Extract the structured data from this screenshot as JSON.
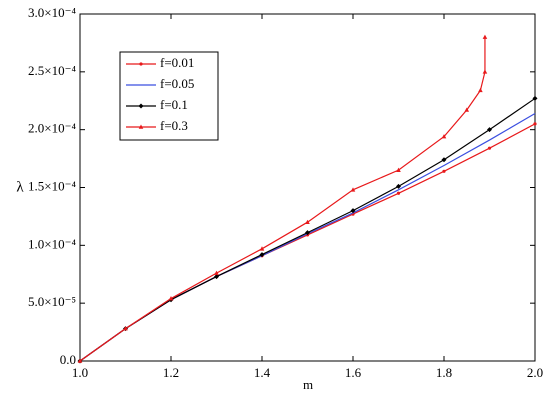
{
  "chart_data": {
    "type": "line",
    "x_label": "m",
    "y_label": "λ",
    "xlim": [
      1.0,
      2.0
    ],
    "xticks": [
      {
        "value": 1.0,
        "label": "1.0"
      },
      {
        "value": 1.2,
        "label": "1.2"
      },
      {
        "value": 1.4,
        "label": "1.4"
      },
      {
        "value": 1.6,
        "label": "1.6"
      },
      {
        "value": 1.8,
        "label": "1.8"
      },
      {
        "value": 2.0,
        "label": "2.0"
      }
    ],
    "ylim": [
      0,
      0.0003
    ],
    "yticks": [
      {
        "value": 0,
        "label": "0.0"
      },
      {
        "value": 5e-05,
        "label": "5.0×10⁻⁵"
      },
      {
        "value": 0.0001,
        "label": "1.0×10⁻⁴"
      },
      {
        "value": 0.00015,
        "label": "1.5×10⁻⁴"
      },
      {
        "value": 0.0002,
        "label": "2.0×10⁻⁴"
      },
      {
        "value": 0.00025,
        "label": "2.5×10⁻⁴"
      },
      {
        "value": 0.0003,
        "label": "3.0×10⁻⁴"
      }
    ],
    "grid": false,
    "legend": "upper left",
    "series": [
      {
        "name": "f=0.01",
        "color": "#e8191b",
        "marker": "circle",
        "x": [
          1.0,
          1.1,
          1.2,
          1.3,
          1.4,
          1.5,
          1.6,
          1.7,
          1.8,
          1.9,
          2.0
        ],
        "values": [
          0,
          2.8e-05,
          5.3e-05,
          7.3e-05,
          9.1e-05,
          0.000109,
          0.000127,
          0.000145,
          0.000164,
          0.000184,
          0.000205
        ]
      },
      {
        "name": "f=0.05",
        "color": "#3b4fe0",
        "marker": "none",
        "x": [
          1.0,
          1.1,
          1.2,
          1.3,
          1.4,
          1.5,
          1.6,
          1.7,
          1.8,
          1.9,
          2.0
        ],
        "values": [
          0,
          2.8e-05,
          5.3e-05,
          7.3e-05,
          9.1e-05,
          0.00011,
          0.000128,
          0.000148,
          0.000169,
          0.000191,
          0.000214
        ]
      },
      {
        "name": "f=0.1",
        "color": "#000000",
        "marker": "diamond",
        "x": [
          1.0,
          1.1,
          1.2,
          1.3,
          1.4,
          1.5,
          1.6,
          1.7,
          1.8,
          1.9,
          2.0
        ],
        "values": [
          0,
          2.8e-05,
          5.3e-05,
          7.3e-05,
          9.2e-05,
          0.000111,
          0.00013,
          0.000151,
          0.000174,
          0.0002,
          0.000227
        ]
      },
      {
        "name": "f=0.3",
        "color": "#e8191b",
        "marker": "triangle",
        "x": [
          1.0,
          1.1,
          1.2,
          1.3,
          1.4,
          1.5,
          1.6,
          1.7,
          1.8,
          1.85,
          1.88,
          1.89,
          1.89
        ],
        "values": [
          0,
          2.8e-05,
          5.4e-05,
          7.6e-05,
          9.7e-05,
          0.00012,
          0.000148,
          0.000165,
          0.000194,
          0.000217,
          0.000234,
          0.00025,
          0.00028
        ]
      }
    ]
  }
}
